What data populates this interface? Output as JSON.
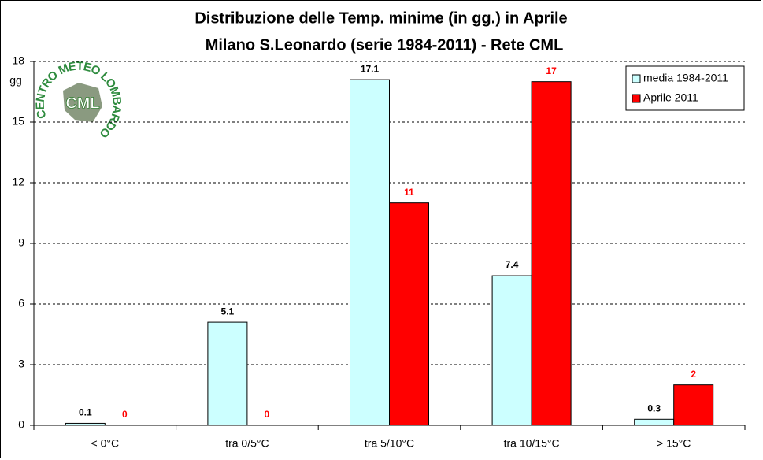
{
  "chart_data": {
    "type": "bar",
    "title": [
      "Distribuzione delle Temp. minime (in gg.) in Aprile",
      "Milano S.Leonardo (serie 1984-2011) - Rete CML"
    ],
    "y_label": "gg",
    "categories": [
      "< 0°C",
      "tra 0/5°C",
      "tra 5/10°C",
      "tra 10/15°C",
      "> 15°C"
    ],
    "series": [
      {
        "name": "media 1984-2011",
        "color": "#ccffff",
        "label_color": "#000000",
        "values": [
          0.1,
          5.1,
          17.1,
          7.4,
          0.3
        ]
      },
      {
        "name": "Aprile 2011",
        "color": "#ff0000",
        "label_color": "#ff0000",
        "values": [
          0,
          0,
          11,
          17,
          2
        ]
      }
    ],
    "ylim": [
      0,
      18
    ],
    "yticks": [
      0,
      3,
      6,
      9,
      12,
      15,
      18
    ],
    "grid": true,
    "legend": "top-right"
  },
  "logo": {
    "ring": "CENTRO METEO LOMBARDO",
    "center": "CML"
  }
}
